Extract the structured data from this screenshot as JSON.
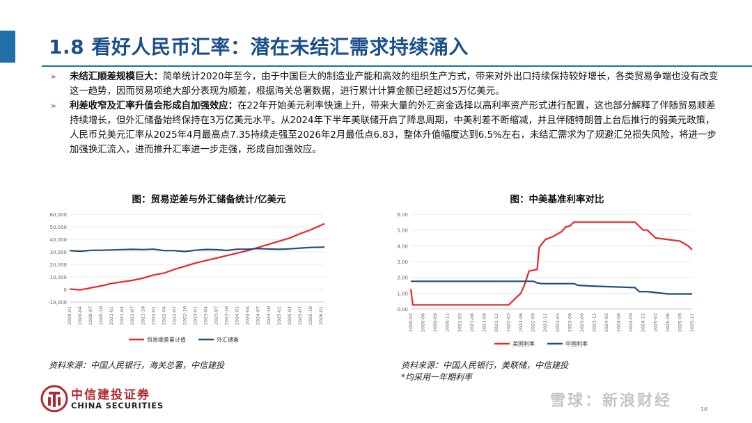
{
  "slide": {
    "title": "1.8 看好人民币汇率：潜在未结汇需求持续涌入",
    "bullet_marker": "➢",
    "bullets": [
      {
        "heading": "未结汇顺差规模巨大：",
        "text": "简单统计2020年至今，由于中国巨大的制造业产能和高效的组织生产方式，带来对外出口持续保持较好增长，各类贸易争端也没有改变这一趋势，因而贸易项绝大部分表现为顺差，根据海关总署数据，进行累计计算金额已经超过5万亿美元。"
      },
      {
        "heading": "利差收窄及汇率升值会形成自加强效应：",
        "text": "在22年开始美元利率快速上升，带来大量的外汇资金选择以高利率资产形式进行配置，这也部分解释了伴随贸易顺差持续增长，但外汇储备始终保持在3万亿美元水平。从2024年下半年美联储开启了降息周期，中美利差不断缩减，并且伴随特朗普上台后推行的弱美元政策，人民币兑美元汇率从2025年4月最高点7.35持续走强至2026年2月最低点6.83，整体升值幅度达到6.5%左右，未结汇需求为了规避汇兑损失风险，将进一步加强换汇流入，进而推升汇率进一步走强，形成自加强效应。"
      }
    ],
    "logo_cn": "中信建投证券",
    "logo_en": "CHINA SECURITIES",
    "watermark": "雪球：新浪财经",
    "page_number": "16"
  },
  "chart_data": [
    {
      "type": "line",
      "title": "图：贸易逆差与外汇储备统计/亿美元",
      "ylim": [
        -10000,
        60000
      ],
      "yticks": [
        "-10,000",
        "0",
        "10,000",
        "20,000",
        "30,000",
        "40,000",
        "50,000",
        "60,000"
      ],
      "ytick_values": [
        -10000,
        0,
        10000,
        20000,
        30000,
        40000,
        50000,
        60000
      ],
      "x_labels": [
        "2020-01",
        "2020-04",
        "2020-07",
        "2020-10",
        "2021-01",
        "2021-04",
        "2021-07",
        "2021-10",
        "2022-01",
        "2022-04",
        "2022-07",
        "2022-10",
        "2023-01",
        "2023-04",
        "2023-07",
        "2023-10",
        "2024-01",
        "2024-04",
        "2024-07",
        "2024-10",
        "2025-01",
        "2025-04",
        "2025-07",
        "2025-10",
        "2026-01"
      ],
      "x_last_index": 73,
      "series": [
        {
          "name": "贸易顺差累计值",
          "color": "#e8262a",
          "points": [
            [
              0,
              300
            ],
            [
              3,
              -400
            ],
            [
              6,
              1200
            ],
            [
              9,
              2800
            ],
            [
              12,
              4800
            ],
            [
              15,
              6000
            ],
            [
              18,
              7200
            ],
            [
              21,
              9000
            ],
            [
              24,
              11500
            ],
            [
              27,
              13000
            ],
            [
              30,
              16000
            ],
            [
              33,
              18500
            ],
            [
              36,
              21000
            ],
            [
              39,
              23000
            ],
            [
              42,
              25000
            ],
            [
              45,
              27000
            ],
            [
              48,
              29000
            ],
            [
              51,
              31000
            ],
            [
              54,
              33500
            ],
            [
              57,
              36000
            ],
            [
              60,
              38500
            ],
            [
              63,
              41000
            ],
            [
              66,
              44500
            ],
            [
              69,
              47500
            ],
            [
              73,
              52500
            ]
          ]
        },
        {
          "name": "外汇储备",
          "color": "#1f4e79",
          "points": [
            [
              0,
              31000
            ],
            [
              3,
              30500
            ],
            [
              6,
              31200
            ],
            [
              9,
              31300
            ],
            [
              12,
              31500
            ],
            [
              15,
              31800
            ],
            [
              18,
              32000
            ],
            [
              21,
              31800
            ],
            [
              24,
              32100
            ],
            [
              27,
              31000
            ],
            [
              30,
              31000
            ],
            [
              33,
              30300
            ],
            [
              36,
              31300
            ],
            [
              39,
              31900
            ],
            [
              42,
              31700
            ],
            [
              45,
              31100
            ],
            [
              48,
              32100
            ],
            [
              51,
              32100
            ],
            [
              54,
              32600
            ],
            [
              57,
              32300
            ],
            [
              60,
              32000
            ],
            [
              63,
              32400
            ],
            [
              66,
              33000
            ],
            [
              69,
              33500
            ],
            [
              73,
              33800
            ]
          ]
        }
      ]
    },
    {
      "type": "line",
      "title": "图：中美基准利率对比",
      "ylim": [
        0,
        6
      ],
      "yticks": [
        "0.00",
        "1.00",
        "2.00",
        "3.00",
        "4.00",
        "5.00",
        "6.00"
      ],
      "ytick_values": [
        0,
        1,
        2,
        3,
        4,
        5,
        6
      ],
      "x_labels": [
        "2020-03",
        "2020-06",
        "2020-09",
        "2020-12",
        "2021-03",
        "2021-06",
        "2021-09",
        "2021-12",
        "2022-03",
        "2022-06",
        "2022-09",
        "2022-12",
        "2023-03",
        "2023-06",
        "2023-09",
        "2023-12",
        "2024-03",
        "2024-06",
        "2024-09",
        "2024-12",
        "2025-03",
        "2025-06",
        "2025-09",
        "2025-12"
      ],
      "x_last_index": 69,
      "series": [
        {
          "name": "美国利率",
          "color": "#e8262a",
          "points": [
            [
              0,
              1.25
            ],
            [
              0.5,
              0.25
            ],
            [
              24,
              0.25
            ],
            [
              25,
              0.5
            ],
            [
              27,
              1.0
            ],
            [
              28,
              1.6
            ],
            [
              29,
              2.4
            ],
            [
              31,
              2.5
            ],
            [
              31.5,
              3.9
            ],
            [
              33,
              4.4
            ],
            [
              35,
              4.6
            ],
            [
              37,
              4.9
            ],
            [
              38,
              5.2
            ],
            [
              39,
              5.25
            ],
            [
              40,
              5.5
            ],
            [
              55,
              5.5
            ],
            [
              56,
              5.25
            ],
            [
              57,
              5.0
            ],
            [
              58,
              5.0
            ],
            [
              59,
              4.75
            ],
            [
              60,
              4.5
            ],
            [
              66,
              4.3
            ],
            [
              68,
              4.0
            ],
            [
              69,
              3.75
            ]
          ]
        },
        {
          "name": "中国利率",
          "color": "#1f4e79",
          "points": [
            [
              0,
              1.75
            ],
            [
              30,
              1.75
            ],
            [
              31,
              1.65
            ],
            [
              32,
              1.6
            ],
            [
              40,
              1.6
            ],
            [
              41,
              1.5
            ],
            [
              44,
              1.45
            ],
            [
              55,
              1.35
            ],
            [
              56,
              1.1
            ],
            [
              58,
              1.1
            ],
            [
              63,
              0.95
            ],
            [
              69,
              0.95
            ]
          ]
        }
      ]
    }
  ],
  "sources": {
    "left": "资料来源：中国人民银行，海关总署，中信建投",
    "right": "资料来源：中国人民银行，美联储，中信建投",
    "right_note": "*均采用一年期利率"
  }
}
